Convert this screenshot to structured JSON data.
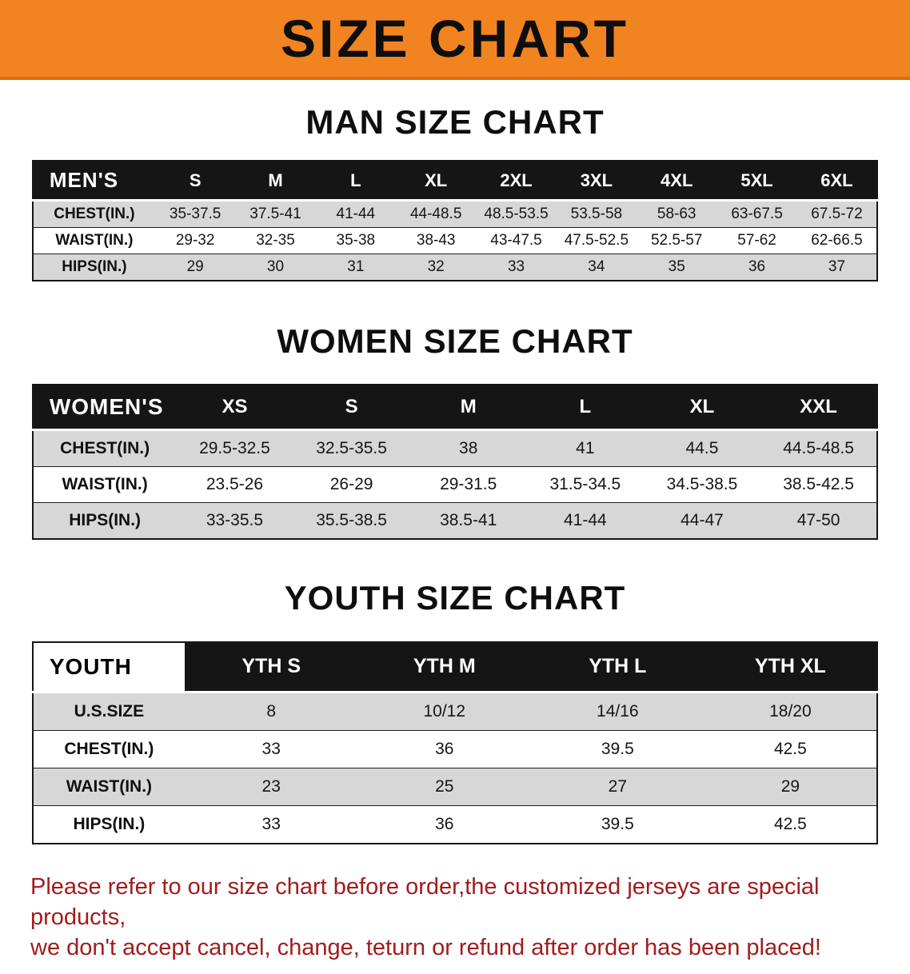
{
  "banner": {
    "title": "SIZE CHART",
    "bg_color": "#F28321",
    "accent_color": "#D96B10"
  },
  "sections": [
    {
      "id": "men",
      "heading": "MAN SIZE CHART",
      "table": {
        "header": [
          "MEN'S",
          "S",
          "M",
          "L",
          "XL",
          "2XL",
          "3XL",
          "4XL",
          "5XL",
          "6XL"
        ],
        "rows": [
          [
            "CHEST(IN.)",
            "35-37.5",
            "37.5-41",
            "41-44",
            "44-48.5",
            "48.5-53.5",
            "53.5-58",
            "58-63",
            "63-67.5",
            "67.5-72"
          ],
          [
            "WAIST(IN.)",
            "29-32",
            "32-35",
            "35-38",
            "38-43",
            "43-47.5",
            "47.5-52.5",
            "52.5-57",
            "57-62",
            "62-66.5"
          ],
          [
            "HIPS(IN.)",
            "29",
            "30",
            "31",
            "32",
            "33",
            "34",
            "35",
            "36",
            "37"
          ]
        ]
      }
    },
    {
      "id": "women",
      "heading": "WOMEN SIZE CHART",
      "table": {
        "header": [
          "WOMEN'S",
          "XS",
          "S",
          "M",
          "L",
          "XL",
          "XXL"
        ],
        "rows": [
          [
            "CHEST(IN.)",
            "29.5-32.5",
            "32.5-35.5",
            "38",
            "41",
            "44.5",
            "44.5-48.5"
          ],
          [
            "WAIST(IN.)",
            "23.5-26",
            "26-29",
            "29-31.5",
            "31.5-34.5",
            "34.5-38.5",
            "38.5-42.5"
          ],
          [
            "HIPS(IN.)",
            "33-35.5",
            "35.5-38.5",
            "38.5-41",
            "41-44",
            "44-47",
            "47-50"
          ]
        ]
      }
    },
    {
      "id": "youth",
      "heading": "YOUTH SIZE CHART",
      "table": {
        "header": [
          "YOUTH",
          "YTH S",
          "YTH M",
          "YTH L",
          "YTH XL"
        ],
        "rows": [
          [
            "U.S.SIZE",
            "8",
            "10/12",
            "14/16",
            "18/20"
          ],
          [
            "CHEST(IN.)",
            "33",
            "36",
            "39.5",
            "42.5"
          ],
          [
            "WAIST(IN.)",
            "23",
            "25",
            "27",
            "29"
          ],
          [
            "HIPS(IN.)",
            "33",
            "36",
            "39.5",
            "42.5"
          ]
        ]
      }
    }
  ],
  "disclaimer": {
    "line1": "Please refer to our size chart before order,the customized jerseys are special products,",
    "line2": "we don't accept cancel, change, teturn or refund after order has been placed!",
    "text_color": "#A21C1C"
  }
}
